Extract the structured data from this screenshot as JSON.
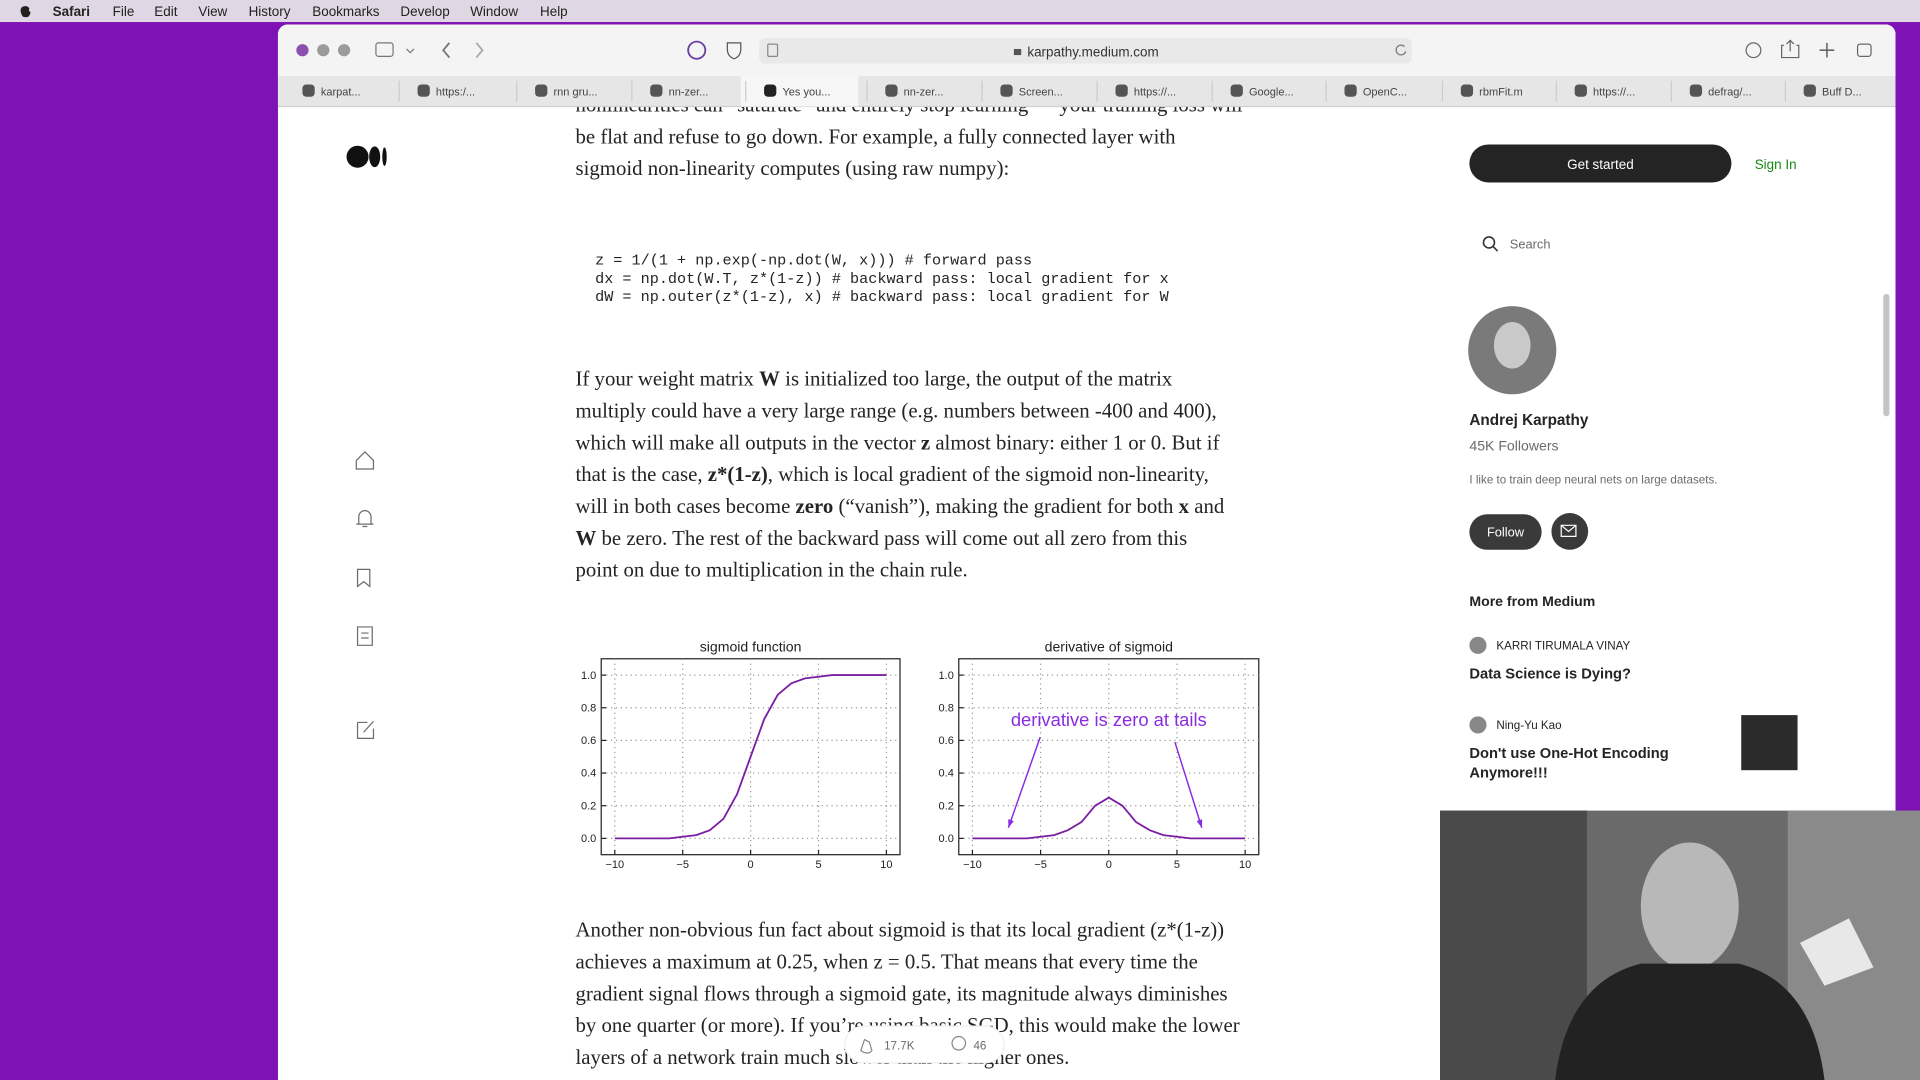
{
  "menubar": {
    "app": "Safari",
    "items": [
      "File",
      "Edit",
      "View",
      "History",
      "Bookmarks",
      "Develop",
      "Window",
      "Help"
    ]
  },
  "toolbar": {
    "url": "karpathy.medium.com"
  },
  "tabs": [
    "karpat...",
    "https:/...",
    "rnn gru...",
    "nn-zer...",
    "Yes you...",
    "nn-zer...",
    "Screen...",
    "https://...",
    "Google...",
    "OpenC...",
    "rbmFit.m",
    "https://...",
    "defrag/...",
    "Buff D..."
  ],
  "article": {
    "paragraphs": [
      [
        [
          "nonlinearities can “saturate” and entirely stop learning — your training loss will"
        ],
        [
          "be flat and refuse to go down. For example, a fully connected layer with"
        ],
        [
          "sigmoid non-linearity computes (using raw numpy):"
        ]
      ],
      [
        [
          "If your weight matrix ",
          {
            "bold": "W"
          },
          " is initialized too large, the output of the matrix"
        ],
        [
          "multiply could have a very large range (e.g. numbers between -400 and 400),"
        ],
        [
          "which will make all outputs in the vector ",
          {
            "bold": "z"
          },
          " almost binary: either 1 or 0. But if"
        ],
        [
          "that is the case, ",
          {
            "bold": "z*(1-z)"
          },
          ", which is local gradient of the sigmoid non-linearity,"
        ],
        [
          "will in both cases become ",
          {
            "bold": "zero"
          },
          " (“vanish”), making the gradient for both ",
          {
            "bold": "x"
          },
          " and"
        ],
        [
          {
            "bold": "W"
          },
          " be zero. The rest of the backward pass will come out all zero from this"
        ],
        [
          "point on due to multiplication in the chain rule."
        ]
      ],
      [
        [
          "Another non-obvious fun fact about sigmoid is that its local gradient (z*(1-z))"
        ],
        [
          "achieves a maximum at 0.25, when z = 0.5. That means that every time the"
        ],
        [
          "gradient signal flows through a sigmoid gate, its magnitude always diminishes"
        ],
        [
          "by one quarter (or more). If you’re using basic SGD, this would make the lower"
        ],
        [
          "layers of a network train much slower than the higher ones."
        ]
      ]
    ],
    "code": [
      "z = 1/(1 + np.exp(-np.dot(W, x))) # forward pass",
      "dx = np.dot(W.T, z*(1-z)) # backward pass: local gradient for x",
      "dW = np.outer(z*(1-z), x) # backward pass: local gradient for W"
    ]
  },
  "chart_data": [
    {
      "type": "line",
      "title": "sigmoid function",
      "color": "#7b1fa2",
      "x": [
        -10,
        -9,
        -8,
        -7,
        -6,
        -5,
        -4,
        -3,
        -2,
        -1,
        0,
        1,
        2,
        3,
        4,
        5,
        6,
        7,
        8,
        9,
        10
      ],
      "values": [
        0,
        0,
        0,
        0,
        0,
        0.01,
        0.02,
        0.05,
        0.12,
        0.27,
        0.5,
        0.73,
        0.88,
        0.95,
        0.98,
        0.99,
        1,
        1,
        1,
        1,
        1
      ],
      "xlim": [
        -11,
        11
      ],
      "ylim": [
        -0.1,
        1.1
      ],
      "xticks": [
        {
          "value": -10,
          "label": "−10"
        },
        {
          "value": -5,
          "label": "−5"
        },
        0,
        5,
        10
      ],
      "yticks": [
        {
          "value": 0,
          "label": "0.0"
        },
        {
          "value": 0.2,
          "label": "0.2"
        },
        {
          "value": 0.4,
          "label": "0.4"
        },
        {
          "value": 0.6,
          "label": "0.6"
        },
        {
          "value": 0.8,
          "label": "0.8"
        },
        {
          "value": 1,
          "label": "1.0"
        }
      ],
      "grid": true
    },
    {
      "type": "line",
      "title": "derivative of sigmoid",
      "color": "#7b1fa2",
      "x": [
        -10,
        -9,
        -8,
        -7,
        -6,
        -5,
        -4,
        -3,
        -2,
        -1,
        0,
        1,
        2,
        3,
        4,
        5,
        6,
        7,
        8,
        9,
        10
      ],
      "values": [
        0,
        0,
        0,
        0,
        0,
        0.01,
        0.02,
        0.05,
        0.1,
        0.2,
        0.25,
        0.2,
        0.1,
        0.05,
        0.02,
        0.01,
        0,
        0,
        0,
        0,
        0
      ],
      "xlim": [
        -11,
        11
      ],
      "ylim": [
        -0.1,
        1.1
      ],
      "xticks": [
        {
          "value": -10,
          "label": "−10"
        },
        {
          "value": -5,
          "label": "−5"
        },
        0,
        5,
        10
      ],
      "yticks": [
        {
          "value": 0,
          "label": "0.0"
        },
        {
          "value": 0.2,
          "label": "0.2"
        },
        {
          "value": 0.4,
          "label": "0.4"
        },
        {
          "value": 0.6,
          "label": "0.6"
        },
        {
          "value": 0.8,
          "label": "0.8"
        },
        {
          "value": 1,
          "label": "1.0"
        }
      ],
      "grid": true,
      "annotations": [
        "derivative is zero at tails"
      ]
    }
  ],
  "sidebar": {
    "get_started": "Get started",
    "sign_in": "Sign In",
    "search": "Search",
    "author": {
      "name": "Andrej Karpathy",
      "followers": "45K Followers",
      "bio": "I like to train deep neural nets on large datasets.",
      "follow": "Follow"
    },
    "more_heading": "More from Medium",
    "stories": [
      {
        "author": "KARRI TIRUMALA VINAY",
        "title": [
          "Data Science is Dying?"
        ]
      },
      {
        "author": "Ning-Yu Kao",
        "title": [
          "Don't use One-Hot Encoding",
          "Anymore!!!"
        ]
      }
    ]
  },
  "claps": {
    "count": "17.7K",
    "responses": "46"
  }
}
